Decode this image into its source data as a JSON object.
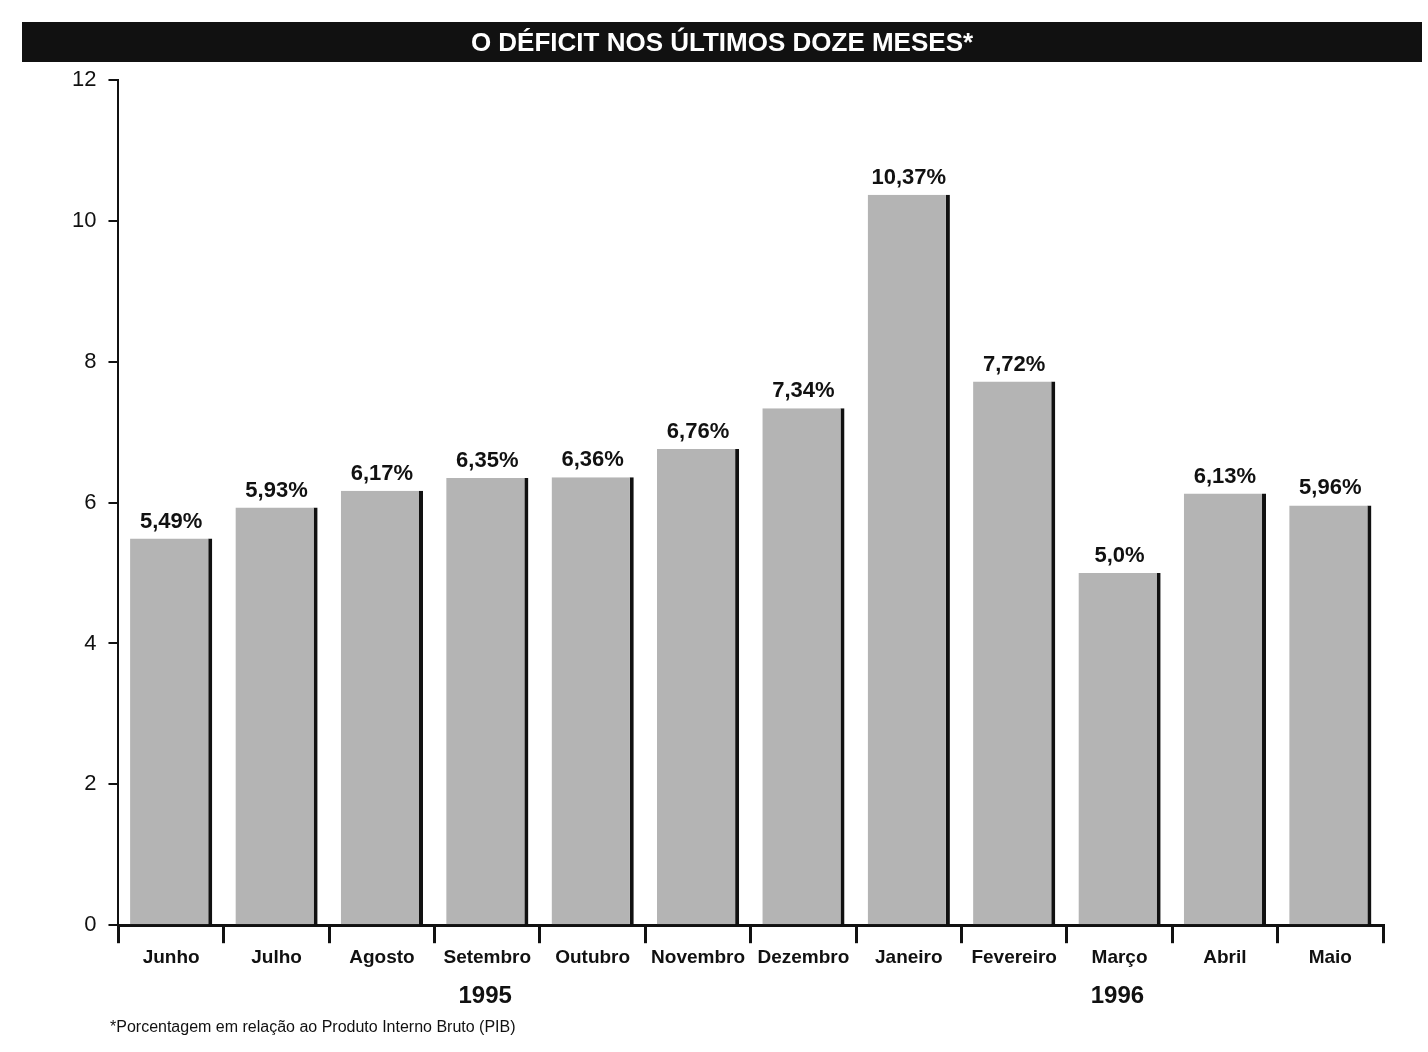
{
  "chart_data": {
    "type": "bar",
    "title": "O DÉFICIT NOS ÚLTIMOS DOZE MESES*",
    "categories": [
      "Junho",
      "Julho",
      "Agosto",
      "Setembro",
      "Outubro",
      "Novembro",
      "Dezembro",
      "Janeiro",
      "Fevereiro",
      "Março",
      "Abril",
      "Maio"
    ],
    "values": [
      5.49,
      5.93,
      6.17,
      6.35,
      6.36,
      6.76,
      7.34,
      10.37,
      7.72,
      5.0,
      6.13,
      5.96
    ],
    "value_labels": [
      "5,49%",
      "5,93%",
      "6,17%",
      "6,35%",
      "6,36%",
      "6,76%",
      "7,34%",
      "10,37%",
      "7,72%",
      "5,0%",
      "6,13%",
      "5,96%"
    ],
    "color": "#b4b4b4",
    "ylim": [
      0,
      12
    ],
    "yticks": [
      0,
      2,
      4,
      6,
      8,
      10,
      12
    ],
    "grid": false,
    "legend": false,
    "annotations": [
      "1995",
      "1996",
      "*Porcentagem em relação ao Produto Interno Bruto (PIB)"
    ]
  }
}
